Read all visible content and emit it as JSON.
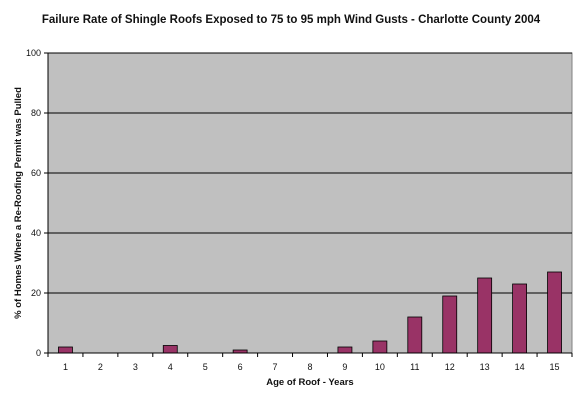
{
  "chart_data": {
    "type": "bar",
    "title": "Failure Rate of Shingle Roofs Exposed to 75 to 95 mph Wind Gusts - Charlotte County 2004",
    "xlabel": "Age of Roof - Years",
    "ylabel": "% of Homes Where a Re-Roofing Permit was Pulled",
    "categories": [
      "1",
      "2",
      "3",
      "4",
      "5",
      "6",
      "7",
      "8",
      "9",
      "10",
      "11",
      "12",
      "13",
      "14",
      "15"
    ],
    "values": [
      2,
      0,
      0,
      2.5,
      0,
      1,
      0,
      0,
      2,
      4,
      12,
      19,
      25,
      23,
      27
    ],
    "ylim": [
      0,
      100
    ],
    "yticks": [
      "0",
      "20",
      "40",
      "60",
      "80",
      "100"
    ],
    "grid": true,
    "legend": "none",
    "colors": {
      "bar": "#993366",
      "plot_background": "#c0c0c0",
      "gridline": "#000000"
    }
  }
}
